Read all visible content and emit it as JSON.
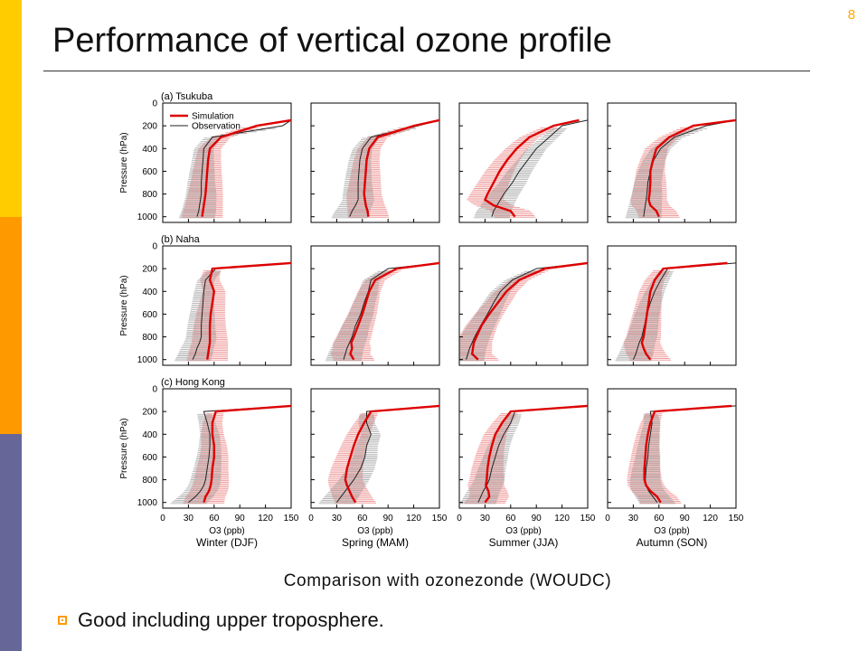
{
  "slide": {
    "page_number": "8",
    "title": "Performance of vertical ozone profile",
    "caption": "Comparison with ozonezonde (WOUDC)",
    "bullet": "Good including upper troposphere.",
    "colors": {
      "stripe_top": "#ffcc00",
      "stripe_middle": "#ff9900",
      "stripe_bottom": "#666699",
      "bullet_icon": "#ff9900"
    }
  },
  "chart_data": {
    "type": "line",
    "layout": "3 rows (stations) x 4 columns (seasons)",
    "y_axis": {
      "label": "Pressure (hPa)",
      "range": [
        1050,
        0
      ],
      "ticks": [
        0,
        200,
        400,
        600,
        800,
        1000
      ]
    },
    "x_axis": {
      "label": "O3 (ppb)",
      "range": [
        0,
        150
      ],
      "ticks": [
        0,
        30,
        60,
        90,
        120,
        150
      ]
    },
    "columns": [
      "Winter (DJF)",
      "Spring (MAM)",
      "Summer (JJA)",
      "Autumn (SON)"
    ],
    "rows": [
      "(a) Tsukuba",
      "(b) Naha",
      "(c) Hong Kong"
    ],
    "legend": {
      "placement": "top-left of first panel",
      "entries": [
        "Simulation",
        "Observation"
      ]
    },
    "series_colors": {
      "Simulation": "#dd0000",
      "Observation": "#222222",
      "sim_spread": "#f0a0a0",
      "obs_spread": "#aaaaaa"
    },
    "pressure_levels": [
      150,
      200,
      300,
      400,
      500,
      600,
      700,
      800,
      850,
      900,
      950,
      1000
    ],
    "panels": [
      [
        {
          "sim": [
            175,
            110,
            68,
            55,
            53,
            52,
            51,
            50,
            49,
            48,
            47,
            46
          ],
          "obs": [
            220,
            140,
            58,
            48,
            47,
            46,
            45,
            45,
            44,
            43,
            42,
            40
          ]
        },
        {
          "sim": [
            190,
            120,
            78,
            68,
            65,
            64,
            63,
            62,
            63,
            64,
            66,
            67
          ],
          "obs": [
            210,
            125,
            70,
            60,
            57,
            56,
            55,
            55,
            55,
            52,
            48,
            45
          ]
        },
        {
          "sim": [
            140,
            110,
            82,
            67,
            56,
            47,
            40,
            33,
            30,
            40,
            60,
            65
          ],
          "obs": [
            170,
            120,
            105,
            90,
            80,
            70,
            62,
            52,
            48,
            44,
            40,
            38
          ]
        },
        {
          "sim": [
            150,
            100,
            72,
            57,
            53,
            50,
            50,
            49,
            48,
            50,
            57,
            60
          ],
          "obs": [
            170,
            115,
            78,
            62,
            54,
            50,
            47,
            46,
            45,
            44,
            43,
            42
          ]
        }
      ],
      [
        {
          "sim": [
            160,
            58,
            55,
            60,
            58,
            56,
            55,
            55,
            55,
            54,
            53,
            52
          ],
          "obs": [
            165,
            62,
            50,
            48,
            47,
            46,
            45,
            45,
            43,
            40,
            38,
            35
          ]
        },
        {
          "sim": [
            160,
            100,
            75,
            68,
            64,
            60,
            55,
            50,
            47,
            48,
            46,
            50
          ],
          "obs": [
            170,
            90,
            70,
            67,
            62,
            58,
            52,
            48,
            45,
            42,
            40,
            38
          ]
        },
        {
          "sim": [
            150,
            100,
            70,
            55,
            45,
            35,
            26,
            20,
            17,
            16,
            15,
            22
          ],
          "obs": [
            155,
            90,
            62,
            48,
            40,
            33,
            25,
            18,
            15,
            12,
            10,
            8
          ]
        },
        {
          "sim": [
            140,
            65,
            55,
            50,
            48,
            46,
            44,
            42,
            40,
            42,
            45,
            50
          ],
          "obs": [
            150,
            70,
            62,
            55,
            50,
            46,
            43,
            40,
            37,
            35,
            33,
            30
          ]
        }
      ],
      [
        {
          "sim": [
            170,
            62,
            58,
            58,
            60,
            60,
            58,
            57,
            56,
            54,
            50,
            48
          ],
          "obs": [
            160,
            48,
            52,
            55,
            55,
            54,
            52,
            50,
            48,
            44,
            38,
            30
          ]
        },
        {
          "sim": [
            165,
            70,
            62,
            55,
            50,
            46,
            42,
            40,
            42,
            45,
            48,
            52
          ],
          "obs": [
            160,
            65,
            65,
            70,
            65,
            63,
            58,
            50,
            45,
            40,
            35,
            30
          ]
        },
        {
          "sim": [
            150,
            60,
            50,
            42,
            38,
            35,
            33,
            32,
            31,
            34,
            35,
            30
          ],
          "obs": [
            155,
            65,
            60,
            52,
            46,
            42,
            38,
            35,
            32,
            28,
            25,
            22
          ]
        },
        {
          "sim": [
            145,
            55,
            50,
            47,
            45,
            44,
            43,
            43,
            45,
            50,
            58,
            62
          ],
          "obs": [
            150,
            50,
            52,
            50,
            48,
            47,
            45,
            44,
            45,
            48,
            53,
            58
          ]
        }
      ]
    ]
  }
}
